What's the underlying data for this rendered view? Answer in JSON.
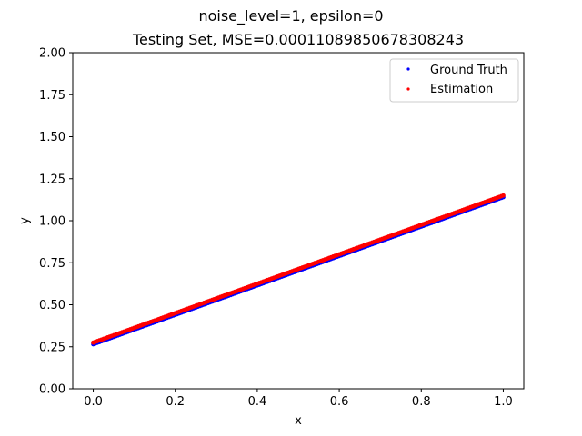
{
  "figure": {
    "suptitle": "noise_level=1, epsilon=0"
  },
  "chart_data": {
    "type": "scatter",
    "title": "Testing Set, MSE=0.00011089850678308243",
    "xlabel": "x",
    "ylabel": "y",
    "xlim": [
      -0.05,
      1.05
    ],
    "ylim": [
      0.0,
      2.0
    ],
    "xticks": [
      0.0,
      0.2,
      0.4,
      0.6,
      0.8,
      1.0
    ],
    "xtick_labels": [
      "0.0",
      "0.2",
      "0.4",
      "0.6",
      "0.8",
      "1.0"
    ],
    "yticks": [
      0.0,
      0.25,
      0.5,
      0.75,
      1.0,
      1.25,
      1.5,
      1.75,
      2.0
    ],
    "ytick_labels": [
      "0.00",
      "0.25",
      "0.50",
      "0.75",
      "1.00",
      "1.25",
      "1.50",
      "1.75",
      "2.00"
    ],
    "grid": false,
    "legend_position": "top-right",
    "series": [
      {
        "name": "Ground Truth",
        "color": "#0000ff",
        "x_range": [
          0.0,
          1.0
        ],
        "y_at_x0": 0.265,
        "y_at_x1": 1.14
      },
      {
        "name": "Estimation",
        "color": "#ff0000",
        "x_range": [
          0.0,
          1.0
        ],
        "y_at_x0": 0.275,
        "y_at_x1": 1.15
      }
    ]
  }
}
